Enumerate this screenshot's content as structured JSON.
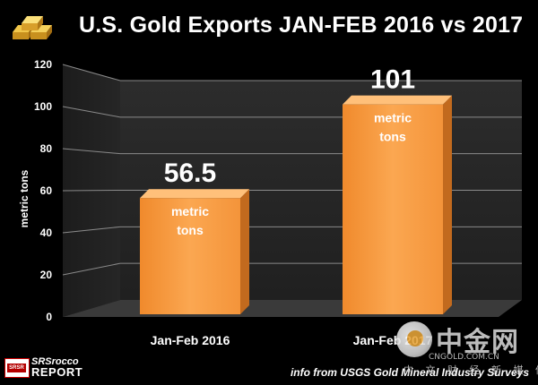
{
  "chart_data": {
    "type": "bar",
    "title": "U.S. Gold Exports JAN-FEB 2016 vs 2017",
    "ylabel": "metric tons",
    "xlabel": "",
    "ylim": [
      0,
      120
    ],
    "yticks": [
      0,
      20,
      40,
      60,
      80,
      100,
      120
    ],
    "categories": [
      "Jan-Feb 2016",
      "Jan-Feb 2017"
    ],
    "values": [
      56.5,
      101
    ],
    "data_labels": [
      "56.5",
      "101"
    ],
    "bar_units": [
      "metric",
      "tons"
    ],
    "grid": true,
    "style": "3d",
    "bar_color": "#f59a3c"
  },
  "source": "info from USGS Gold Mineral Industry Surveys",
  "logo": {
    "line1": "SRSrocco",
    "line2": "REPORT",
    "badge": "SRSR"
  },
  "watermark": {
    "main": "中金网",
    "url": "CNGOLD.COM.CN",
    "sub": "中 文 财 经 新 媒 体"
  }
}
